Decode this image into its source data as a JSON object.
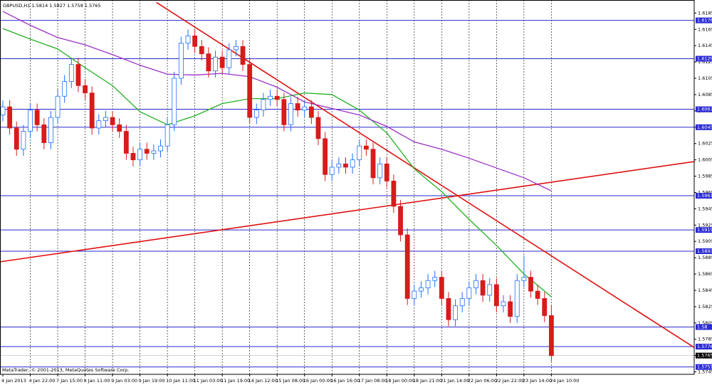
{
  "chart_data": {
    "type": "candlestick",
    "title": "GBPUSD,H1  1.5814 1.5827 1.5758 1.5765",
    "footer": "MetaTrader, © 2001-2013, MetaQuotes Software Corp.",
    "categories": [
      "4 Jan 2013",
      null,
      null,
      null,
      "4 Jan 22:00",
      null,
      null,
      null,
      "7 Jan 15:00",
      null,
      null,
      null,
      "8 Jan 11:00",
      null,
      null,
      null,
      "9 Jan 03:00",
      null,
      null,
      null,
      "9 Jan 19:00",
      null,
      null,
      null,
      "10 Jan 11:00",
      null,
      null,
      null,
      "11 Jan 03:00",
      null,
      null,
      null,
      "11 Jan 19:00",
      null,
      null,
      null,
      "14 Jan 12:00",
      null,
      null,
      null,
      "15 Jan 08:00",
      null,
      null,
      null,
      "16 Jan 00:00",
      null,
      null,
      null,
      "16 Jan 16:00",
      null,
      null,
      null,
      "17 Jan 08:00",
      null,
      null,
      null,
      "18 Jan 00:00",
      null,
      null,
      null,
      "18 Jan 21:00",
      null,
      null,
      null,
      "21 Jan 14:00",
      null,
      null,
      null,
      "22 Jan 06:00",
      null,
      null,
      null,
      "22 Jan 22:00",
      null,
      null,
      null,
      "23 Jan 14:00",
      null,
      null,
      null,
      "24 Jan 10:00"
    ],
    "open": [
      1.606,
      1.607,
      1.6044,
      1.6018,
      1.604,
      1.6066,
      1.6048,
      1.6026,
      1.6057,
      1.6083,
      1.6101,
      1.6122,
      1.6096,
      1.6087,
      1.6044,
      1.6053,
      1.6057,
      1.6048,
      1.604,
      1.6013,
      1.6005,
      1.6018,
      1.6013,
      1.6016,
      1.6022,
      1.6048,
      1.6105,
      1.6148,
      1.6157,
      1.6144,
      1.6135,
      1.6114,
      1.6131,
      1.6118,
      1.614,
      1.6144,
      1.6122,
      1.6057,
      1.6066,
      1.6079,
      1.6083,
      1.6079,
      1.6048,
      1.6074,
      1.6066,
      1.607,
      1.6057,
      1.6031,
      1.5987,
      1.5996,
      1.6,
      1.5996,
      1.6005,
      1.6022,
      1.6018,
      1.5983,
      1.6,
      1.5979,
      1.5948,
      1.5913,
      1.5835,
      1.5844,
      1.5848,
      1.5857,
      1.5861,
      1.5835,
      1.5809,
      1.5826,
      1.5835,
      1.5848,
      1.5857,
      1.5839,
      1.5852,
      1.5826,
      1.5831,
      1.5813,
      1.5857,
      1.5861,
      1.5844,
      1.5835,
      1.5814
    ],
    "high": [
      1.6078,
      1.6078,
      1.6052,
      1.6048,
      1.6074,
      1.6074,
      1.6056,
      1.6065,
      1.6091,
      1.6109,
      1.613,
      1.613,
      1.6104,
      1.6095,
      1.6061,
      1.6065,
      1.6065,
      1.6056,
      1.6048,
      1.6021,
      1.6026,
      1.6026,
      1.6024,
      1.603,
      1.6056,
      1.6113,
      1.6156,
      1.6165,
      1.6165,
      1.6152,
      1.6143,
      1.6139,
      1.6139,
      1.6148,
      1.6152,
      1.6152,
      1.613,
      1.6074,
      1.6087,
      1.6091,
      1.6091,
      1.6087,
      1.6082,
      1.6082,
      1.6078,
      1.6078,
      1.6065,
      1.6039,
      1.6004,
      1.6008,
      1.6008,
      1.6013,
      1.603,
      1.603,
      1.6026,
      1.6008,
      1.6008,
      1.5987,
      1.5956,
      1.5921,
      1.5852,
      1.5856,
      1.5865,
      1.5869,
      1.5869,
      1.5843,
      1.5834,
      1.5843,
      1.5856,
      1.5865,
      1.5865,
      1.586,
      1.586,
      1.5839,
      1.5839,
      1.5865,
      1.5888,
      1.5869,
      1.5852,
      1.5843,
      1.5827
    ],
    "low": [
      1.6052,
      1.6036,
      1.601,
      1.601,
      1.6032,
      1.604,
      1.6018,
      1.6018,
      1.6049,
      1.6075,
      1.6093,
      1.6088,
      1.6079,
      1.6036,
      1.6036,
      1.6045,
      1.604,
      1.6032,
      1.6005,
      1.5997,
      1.5997,
      1.6005,
      1.6005,
      1.6008,
      1.6014,
      1.604,
      1.6097,
      1.614,
      1.6136,
      1.6127,
      1.6106,
      1.6106,
      1.611,
      1.611,
      1.6132,
      1.6114,
      1.6049,
      1.6049,
      1.6058,
      1.6071,
      1.6071,
      1.604,
      1.604,
      1.6058,
      1.6058,
      1.6049,
      1.6023,
      1.5979,
      1.5979,
      1.5988,
      1.5988,
      1.5988,
      1.5997,
      1.601,
      1.5975,
      1.5975,
      1.5971,
      1.594,
      1.5905,
      1.5827,
      1.5827,
      1.5836,
      1.584,
      1.5849,
      1.5827,
      1.5801,
      1.5801,
      1.5818,
      1.5827,
      1.584,
      1.5831,
      1.5831,
      1.5818,
      1.5818,
      1.5805,
      1.5805,
      1.5849,
      1.5836,
      1.5827,
      1.5806,
      1.5758
    ],
    "close": [
      1.607,
      1.6044,
      1.6018,
      1.604,
      1.6066,
      1.6048,
      1.6026,
      1.6057,
      1.6083,
      1.6101,
      1.6122,
      1.6096,
      1.6087,
      1.6044,
      1.6053,
      1.6057,
      1.6048,
      1.604,
      1.6013,
      1.6005,
      1.6018,
      1.6013,
      1.6016,
      1.6022,
      1.6048,
      1.6105,
      1.6148,
      1.6157,
      1.6144,
      1.6135,
      1.6114,
      1.6131,
      1.6118,
      1.614,
      1.6144,
      1.6122,
      1.6057,
      1.6066,
      1.6079,
      1.6083,
      1.6079,
      1.6048,
      1.6074,
      1.6066,
      1.607,
      1.6057,
      1.6031,
      1.5987,
      1.5996,
      1.6,
      1.5996,
      1.6005,
      1.6022,
      1.6018,
      1.5983,
      1.6,
      1.5979,
      1.5948,
      1.5913,
      1.5835,
      1.5844,
      1.5848,
      1.5857,
      1.5861,
      1.5835,
      1.5809,
      1.5826,
      1.5835,
      1.5848,
      1.5857,
      1.5839,
      1.5852,
      1.5826,
      1.5831,
      1.5813,
      1.5857,
      1.5861,
      1.5844,
      1.5835,
      1.5814,
      1.5765
    ],
    "up_color": "#1e6fff",
    "down_color": "#d81b1b",
    "indicators": [
      {
        "color": "#22b022",
        "x": [
          0,
          4,
          8,
          12,
          16,
          20,
          24,
          28,
          32,
          36,
          40,
          44,
          48,
          52,
          56,
          60,
          64,
          68,
          72,
          76,
          80
        ],
        "values": [
          1.6166,
          1.6153,
          1.6141,
          1.6118,
          1.6096,
          1.6064,
          1.6048,
          1.6059,
          1.6074,
          1.608,
          1.608,
          1.6087,
          1.6085,
          1.6066,
          1.6038,
          1.5994,
          1.5966,
          1.5932,
          1.59,
          1.5865,
          1.5837
        ]
      },
      {
        "color": "#9b30c8",
        "x": [
          0,
          4,
          8,
          12,
          16,
          20,
          24,
          28,
          32,
          36,
          40,
          44,
          48,
          52,
          56,
          60,
          64,
          68,
          72,
          76,
          80
        ],
        "values": [
          1.6187,
          1.617,
          1.6155,
          1.6146,
          1.6134,
          1.6121,
          1.611,
          1.6109,
          1.6111,
          1.6107,
          1.6094,
          1.6076,
          1.6068,
          1.606,
          1.6046,
          1.6027,
          1.6018,
          1.6007,
          1.5995,
          1.5983,
          1.5967
        ]
      }
    ],
    "trendlines": [
      {
        "color": "#e01010",
        "x": [
          22.4,
          103.4
        ],
        "values": [
          1.6198,
          1.5761
        ]
      },
      {
        "color": "#e01010",
        "x": [
          -0.4,
          103.4
        ],
        "values": [
          1.588,
          1.6006
        ]
      }
    ],
    "levels": [
      1.6176,
      1.6129,
      1.6067,
      1.6045,
      1.5961,
      1.5919,
      1.5893,
      1.58,
      1.5776,
      1.5751
    ],
    "level_color": "#2a2ad0",
    "bid": 1.5765,
    "ylim": [
      1.5742,
      1.6201
    ],
    "yticks": [
      1.6185,
      1.6165,
      1.6145,
      1.6125,
      1.6105,
      1.6085,
      1.6065,
      1.6045,
      1.6025,
      1.6005,
      1.5985,
      1.5965,
      1.5945,
      1.5925,
      1.5905,
      1.5885,
      1.5865,
      1.5845,
      1.5825,
      1.5805,
      1.5785,
      1.5765,
      1.5745
    ],
    "grid": true
  }
}
